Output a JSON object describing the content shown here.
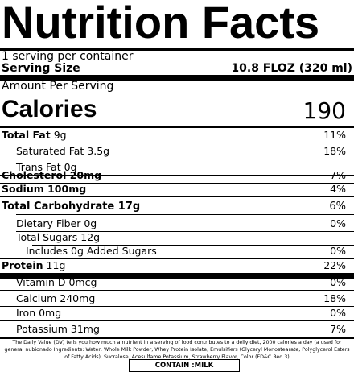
{
  "title": "Nutrition Facts",
  "servings_per_container": "1 serving per container",
  "serving_size_label": "Serving Size",
  "serving_size_value": "10.8 FLOZ (320 ml)",
  "amount_per_serving": "Amount Per Serving",
  "calories_label": "Calories",
  "calories_value": "190",
  "nutrients": [
    {
      "label": "Total Fat",
      "amount": "9g",
      "dv": "11%"
    },
    {
      "label": "Saturated Fat 3.5g",
      "amount": "",
      "dv": "18%"
    },
    {
      "label": "Trans Fat 0g",
      "amount": "",
      "dv": ""
    },
    {
      "label": "Cholesterol 20mg",
      "amount": "",
      "dv": "7%"
    },
    {
      "label": "Sodium 100mg",
      "amount": "",
      "dv": "4%"
    },
    {
      "label": "Total Carbohydrate 17g",
      "amount": "",
      "dv": "6%"
    },
    {
      "label": "Dietary Fiber 0g",
      "amount": "",
      "dv": "0%"
    },
    {
      "label": "Total Sugars 12g",
      "amount": "",
      "dv": ""
    },
    {
      "label": "Includes 0g Added Sugars",
      "amount": "",
      "dv": "0%"
    },
    {
      "label": "Protein",
      "amount": "11g",
      "dv": "22%"
    },
    {
      "label": "Vitamin D 0mcg",
      "amount": "",
      "dv": "0%"
    },
    {
      "label": "Calcium 240mg",
      "amount": "",
      "dv": "18%"
    },
    {
      "label": "Iron 0mg",
      "amount": "",
      "dv": "0%"
    },
    {
      "label": "Potassium 31mg",
      "amount": "",
      "dv": "7%"
    }
  ],
  "footnote": "The Daily Value (DV) tells you how much a nutrient in a serving of food contributes to a delly diet, 2000 calories a day (a used for general nubionado Ingredients: Water, Whole Milk Powder, Whey Protein Isolate, Emulsifiers (Glyceryl Monostearate, Polyglycerol Esters of Fatty Acids), Sucralose, Acesulfame Potassium, Strawberry Flavor, Color (FD&C Red 3)",
  "allergen": "CONTAIN :MILK"
}
